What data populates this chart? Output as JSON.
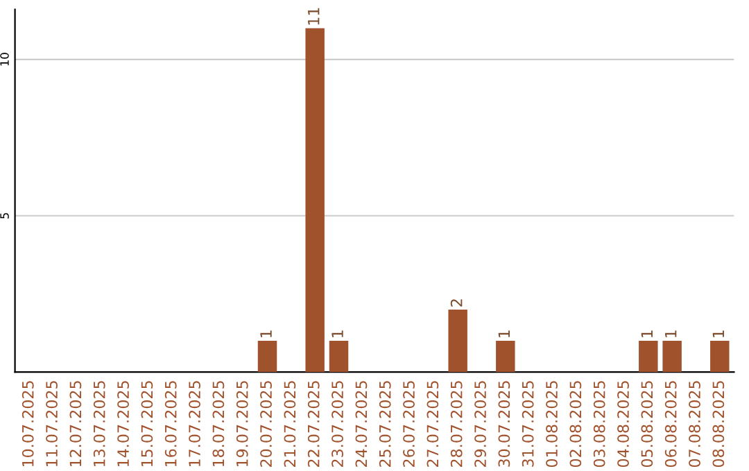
{
  "chart_data": {
    "type": "bar",
    "categories": [
      "10.07.2025",
      "11.07.2025",
      "12.07.2025",
      "13.07.2025",
      "14.07.2025",
      "15.07.2025",
      "16.07.2025",
      "17.07.2025",
      "18.07.2025",
      "19.07.2025",
      "20.07.2025",
      "21.07.2025",
      "22.07.2025",
      "23.07.2025",
      "24.07.2025",
      "25.07.2025",
      "26.07.2025",
      "27.07.2025",
      "28.07.2025",
      "29.07.2025",
      "30.07.2025",
      "31.07.2025",
      "01.08.2025",
      "02.08.2025",
      "03.08.2025",
      "04.08.2025",
      "05.08.2025",
      "06.08.2025",
      "07.08.2025",
      "08.08.2025"
    ],
    "values": [
      0,
      0,
      0,
      0,
      0,
      0,
      0,
      0,
      0,
      0,
      1,
      0,
      11,
      1,
      0,
      0,
      0,
      0,
      2,
      0,
      1,
      0,
      0,
      0,
      0,
      0,
      1,
      1,
      0,
      1
    ],
    "value_labels": [
      null,
      null,
      null,
      null,
      null,
      null,
      null,
      null,
      null,
      null,
      "1",
      null,
      "11",
      "1",
      null,
      null,
      null,
      null,
      "2",
      null,
      "1",
      null,
      null,
      null,
      null,
      null,
      "1",
      "1",
      null,
      "1"
    ],
    "color": "#a0522d",
    "ylim": [
      0,
      11.6
    ],
    "yticks": [
      5,
      10
    ],
    "grid": "y"
  }
}
